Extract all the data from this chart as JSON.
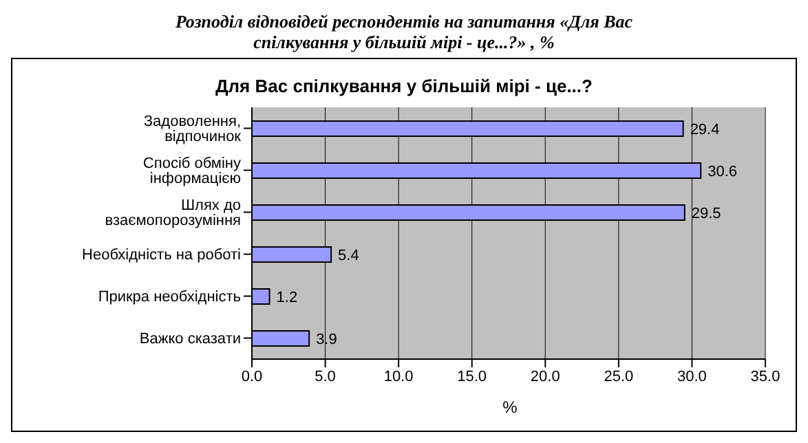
{
  "chart_data": {
    "type": "bar",
    "orientation": "horizontal",
    "title": "Розподіл відповідей респондентів на запитання «Для Вас спілкування у більшій мірі - це...?» , %",
    "subtitle": "Для Вас спілкування у більшій мірі - це...?",
    "xlabel": "%",
    "categories": [
      "Задоволення, відпочинок",
      "Спосіб обміну інформацією",
      "Шлях до взаємопорозуміння",
      "Необхідність на роботі",
      "Прикра необхідність",
      "Важко сказати"
    ],
    "values": [
      29.4,
      30.6,
      29.5,
      5.4,
      1.2,
      3.9
    ],
    "color": "#9999ff",
    "xlim": [
      0,
      35
    ],
    "xticks": [
      {
        "value": 0,
        "label": "0.0"
      },
      {
        "value": 5,
        "label": "5.0"
      },
      {
        "value": 10,
        "label": "10.0"
      },
      {
        "value": 15,
        "label": "15.0"
      },
      {
        "value": 20,
        "label": "20.0"
      },
      {
        "value": 25,
        "label": "25.0"
      },
      {
        "value": 30,
        "label": "30.0"
      },
      {
        "value": 35,
        "label": "35.0"
      }
    ],
    "grid": "x",
    "data_labels": true
  }
}
